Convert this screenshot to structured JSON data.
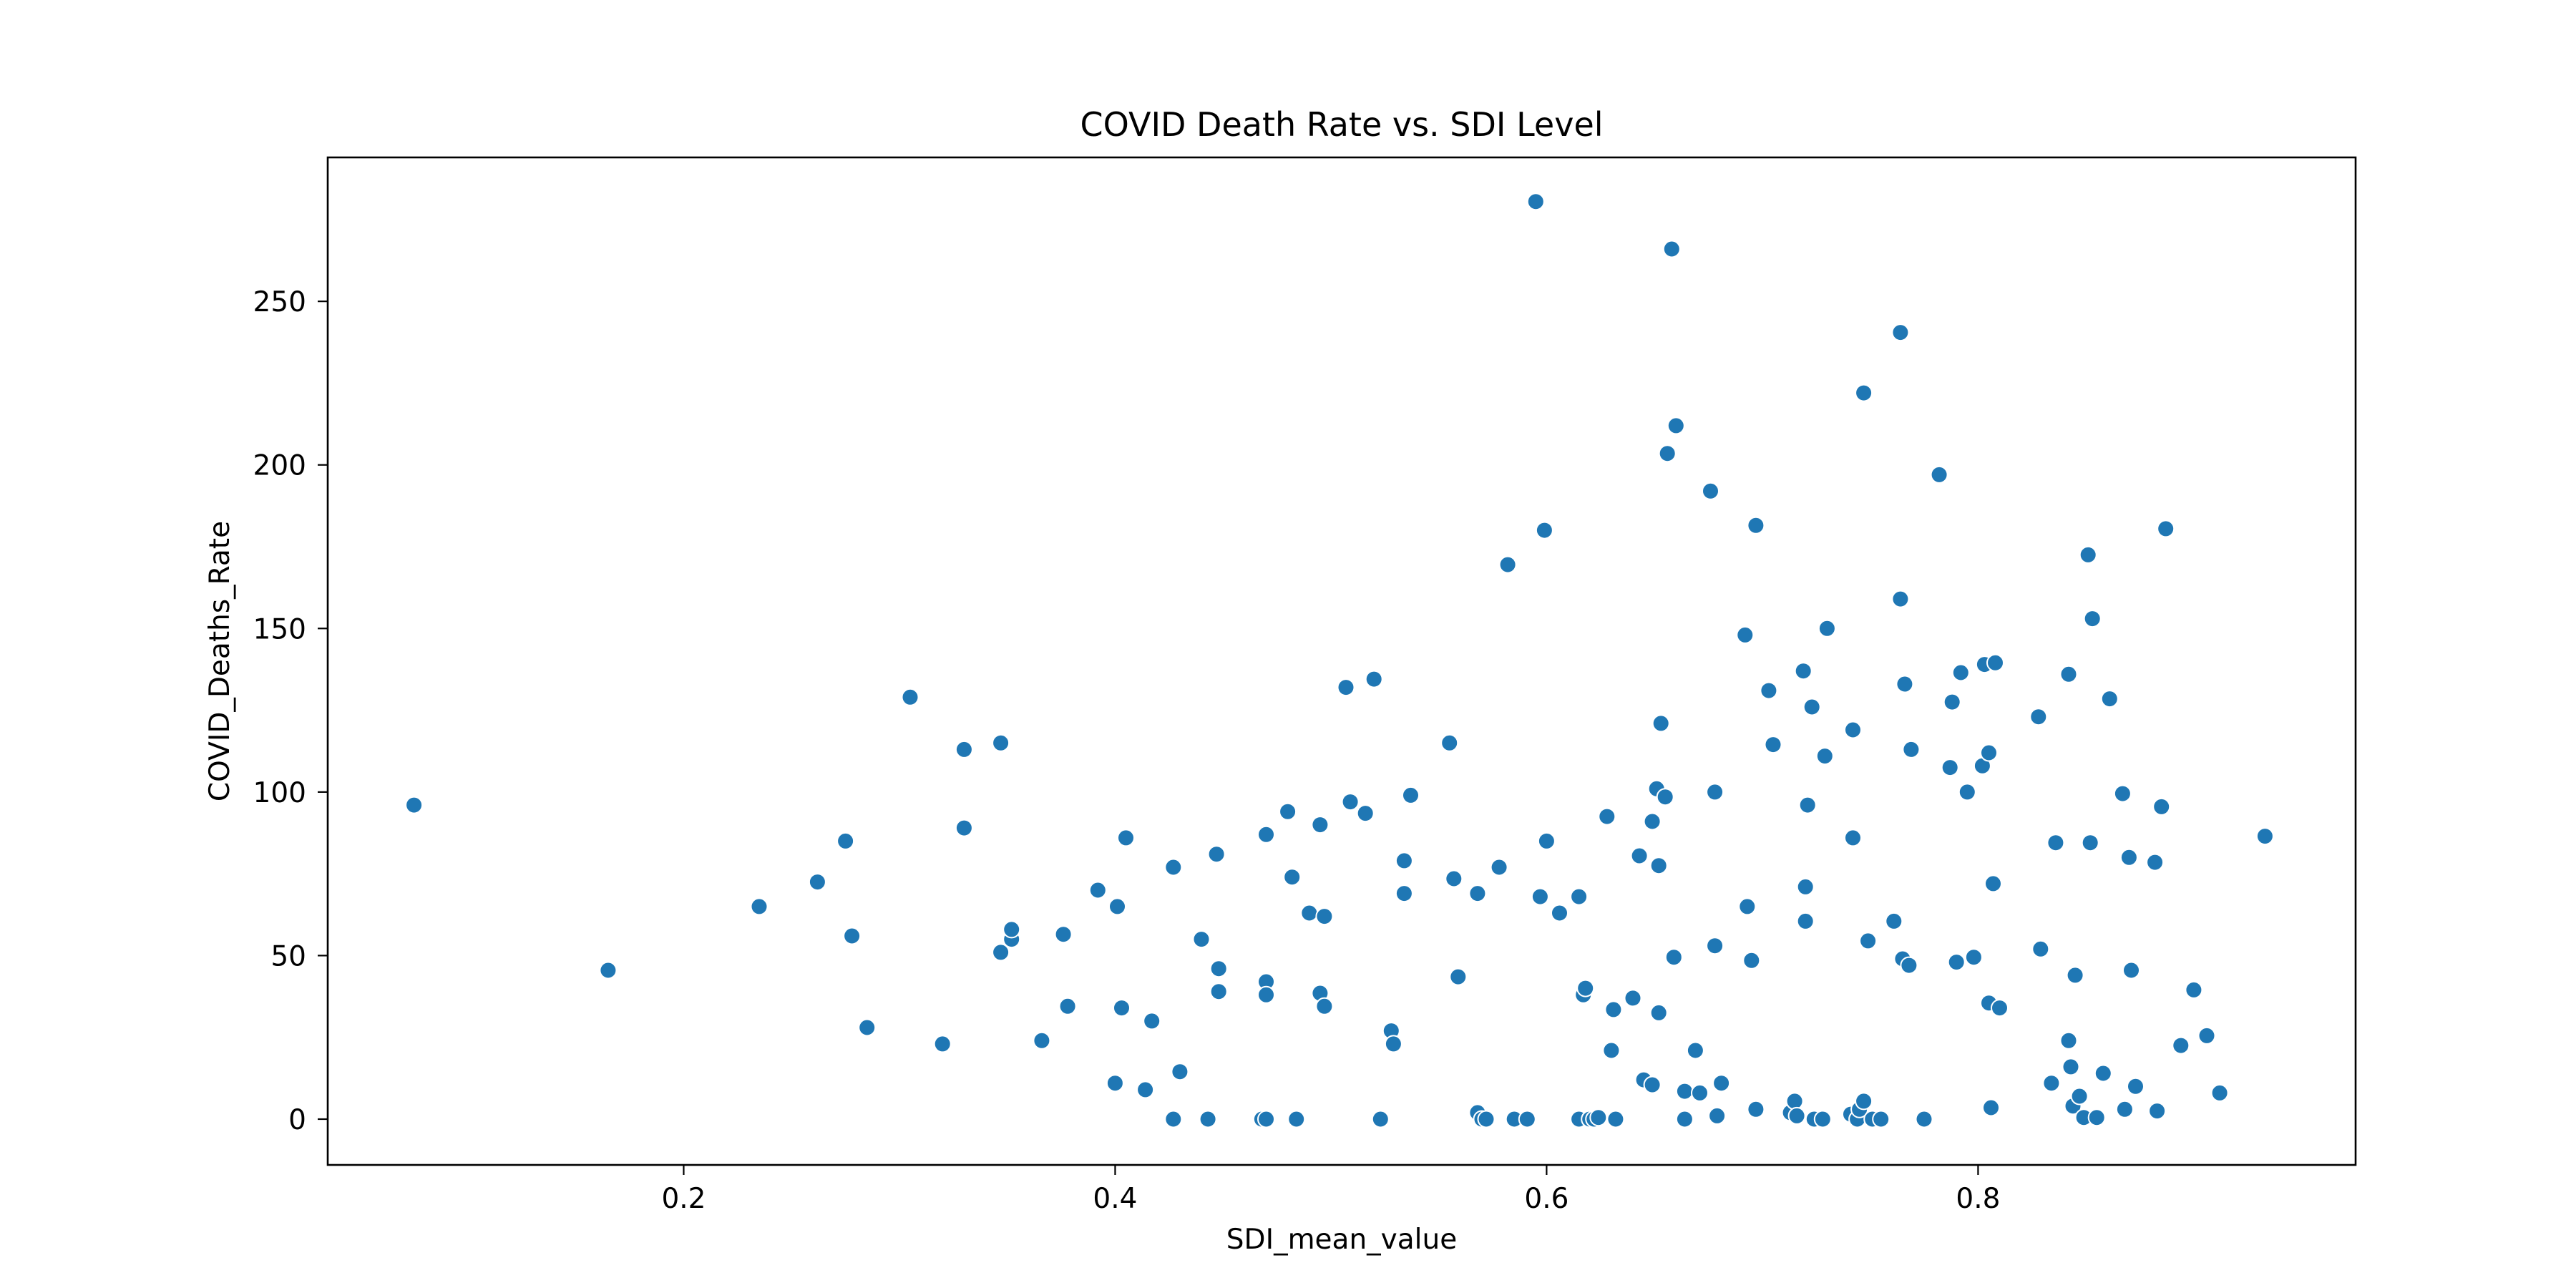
{
  "chart_data": {
    "type": "scatter",
    "title": "COVID Death Rate vs. SDI Level",
    "xlabel": "SDI_mean_value",
    "ylabel": "COVID_Deaths_Rate",
    "xlim": [
      0.035,
      0.975
    ],
    "ylim": [
      -14,
      294
    ],
    "xticks": [
      0.2,
      0.4,
      0.6,
      0.8
    ],
    "xtick_labels": [
      "0.2",
      "0.4",
      "0.6",
      "0.8"
    ],
    "yticks": [
      0,
      50,
      100,
      150,
      200,
      250
    ],
    "ytick_labels": [
      "0",
      "50",
      "100",
      "150",
      "200",
      "250"
    ],
    "grid": false,
    "legend": "none",
    "marker_color": "#1f77b4",
    "series": [
      {
        "points": [
          [
            0.075,
            96
          ],
          [
            0.165,
            45.5
          ],
          [
            0.235,
            65
          ],
          [
            0.262,
            72.5
          ],
          [
            0.275,
            85
          ],
          [
            0.278,
            56
          ],
          [
            0.285,
            28
          ],
          [
            0.305,
            129
          ],
          [
            0.32,
            23
          ],
          [
            0.33,
            113
          ],
          [
            0.33,
            89
          ],
          [
            0.347,
            115
          ],
          [
            0.347,
            51
          ],
          [
            0.352,
            55
          ],
          [
            0.352,
            58
          ],
          [
            0.366,
            24
          ],
          [
            0.376,
            56.5
          ],
          [
            0.378,
            34.5
          ],
          [
            0.392,
            70
          ],
          [
            0.4,
            11
          ],
          [
            0.401,
            65
          ],
          [
            0.403,
            34
          ],
          [
            0.405,
            86
          ],
          [
            0.414,
            9
          ],
          [
            0.417,
            30
          ],
          [
            0.427,
            77
          ],
          [
            0.427,
            0
          ],
          [
            0.43,
            14.5
          ],
          [
            0.44,
            55
          ],
          [
            0.443,
            0
          ],
          [
            0.447,
            81
          ],
          [
            0.448,
            46
          ],
          [
            0.448,
            39
          ],
          [
            0.468,
            0
          ],
          [
            0.47,
            0
          ],
          [
            0.47,
            87
          ],
          [
            0.47,
            42
          ],
          [
            0.47,
            38
          ],
          [
            0.48,
            94
          ],
          [
            0.482,
            74
          ],
          [
            0.484,
            0
          ],
          [
            0.49,
            63
          ],
          [
            0.495,
            90
          ],
          [
            0.495,
            38.5
          ],
          [
            0.497,
            62
          ],
          [
            0.497,
            34.5
          ],
          [
            0.507,
            132
          ],
          [
            0.509,
            97
          ],
          [
            0.516,
            93.5
          ],
          [
            0.52,
            134.5
          ],
          [
            0.523,
            0
          ],
          [
            0.528,
            27
          ],
          [
            0.529,
            23
          ],
          [
            0.534,
            79
          ],
          [
            0.534,
            69
          ],
          [
            0.537,
            99
          ],
          [
            0.555,
            115
          ],
          [
            0.557,
            73.5
          ],
          [
            0.559,
            43.5
          ],
          [
            0.568,
            69
          ],
          [
            0.568,
            2
          ],
          [
            0.57,
            0
          ],
          [
            0.572,
            0
          ],
          [
            0.578,
            77
          ],
          [
            0.582,
            169.5
          ],
          [
            0.585,
            0
          ],
          [
            0.591,
            0
          ],
          [
            0.595,
            280.5
          ],
          [
            0.597,
            68
          ],
          [
            0.599,
            180
          ],
          [
            0.6,
            85
          ],
          [
            0.606,
            63
          ],
          [
            0.615,
            68
          ],
          [
            0.615,
            0
          ],
          [
            0.617,
            38
          ],
          [
            0.618,
            40
          ],
          [
            0.62,
            0
          ],
          [
            0.622,
            0
          ],
          [
            0.624,
            0.5
          ],
          [
            0.628,
            92.5
          ],
          [
            0.63,
            21
          ],
          [
            0.631,
            33.5
          ],
          [
            0.632,
            0
          ],
          [
            0.64,
            37
          ],
          [
            0.643,
            80.5
          ],
          [
            0.645,
            12
          ],
          [
            0.649,
            10.5
          ],
          [
            0.649,
            91
          ],
          [
            0.651,
            101
          ],
          [
            0.652,
            77.5
          ],
          [
            0.652,
            32.5
          ],
          [
            0.653,
            121
          ],
          [
            0.655,
            98.5
          ],
          [
            0.656,
            203.5
          ],
          [
            0.658,
            266
          ],
          [
            0.659,
            49.5
          ],
          [
            0.66,
            212
          ],
          [
            0.664,
            0
          ],
          [
            0.664,
            8.5
          ],
          [
            0.669,
            21
          ],
          [
            0.671,
            8
          ],
          [
            0.676,
            192
          ],
          [
            0.678,
            100
          ],
          [
            0.678,
            53
          ],
          [
            0.679,
            1
          ],
          [
            0.681,
            11
          ],
          [
            0.692,
            148
          ],
          [
            0.693,
            65
          ],
          [
            0.695,
            48.5
          ],
          [
            0.697,
            3
          ],
          [
            0.697,
            181.5
          ],
          [
            0.703,
            131
          ],
          [
            0.705,
            114.5
          ],
          [
            0.713,
            2
          ],
          [
            0.715,
            5.5
          ],
          [
            0.716,
            1
          ],
          [
            0.719,
            137
          ],
          [
            0.72,
            60.5
          ],
          [
            0.72,
            71
          ],
          [
            0.721,
            96
          ],
          [
            0.723,
            126
          ],
          [
            0.724,
            0
          ],
          [
            0.728,
            0
          ],
          [
            0.729,
            111
          ],
          [
            0.73,
            150
          ],
          [
            0.741,
            1.5
          ],
          [
            0.742,
            119
          ],
          [
            0.742,
            86
          ],
          [
            0.744,
            0
          ],
          [
            0.745,
            3
          ],
          [
            0.747,
            5.5
          ],
          [
            0.747,
            222
          ],
          [
            0.749,
            54.5
          ],
          [
            0.751,
            0
          ],
          [
            0.755,
            0
          ],
          [
            0.761,
            60.5
          ],
          [
            0.764,
            159
          ],
          [
            0.764,
            240.5
          ],
          [
            0.765,
            49
          ],
          [
            0.766,
            133
          ],
          [
            0.768,
            47
          ],
          [
            0.769,
            113
          ],
          [
            0.775,
            0
          ],
          [
            0.782,
            197
          ],
          [
            0.787,
            107.5
          ],
          [
            0.788,
            127.5
          ],
          [
            0.79,
            48
          ],
          [
            0.792,
            136.5
          ],
          [
            0.795,
            100
          ],
          [
            0.798,
            49.5
          ],
          [
            0.802,
            108
          ],
          [
            0.803,
            139
          ],
          [
            0.805,
            112
          ],
          [
            0.805,
            35.5
          ],
          [
            0.806,
            3.5
          ],
          [
            0.807,
            72
          ],
          [
            0.808,
            139.5
          ],
          [
            0.81,
            34
          ],
          [
            0.828,
            123
          ],
          [
            0.829,
            52
          ],
          [
            0.834,
            11
          ],
          [
            0.836,
            84.5
          ],
          [
            0.842,
            136
          ],
          [
            0.842,
            24
          ],
          [
            0.843,
            16
          ],
          [
            0.844,
            4
          ],
          [
            0.845,
            44
          ],
          [
            0.847,
            7
          ],
          [
            0.849,
            0.5
          ],
          [
            0.851,
            172.5
          ],
          [
            0.852,
            84.5
          ],
          [
            0.853,
            153
          ],
          [
            0.855,
            0.5
          ],
          [
            0.858,
            14
          ],
          [
            0.861,
            128.5
          ],
          [
            0.867,
            99.5
          ],
          [
            0.868,
            3
          ],
          [
            0.87,
            80
          ],
          [
            0.871,
            45.5
          ],
          [
            0.873,
            10
          ],
          [
            0.882,
            78.5
          ],
          [
            0.883,
            2.5
          ],
          [
            0.885,
            95.5
          ],
          [
            0.887,
            180.5
          ],
          [
            0.894,
            22.5
          ],
          [
            0.9,
            39.5
          ],
          [
            0.906,
            25.5
          ],
          [
            0.912,
            8
          ],
          [
            0.933,
            86.5
          ]
        ]
      }
    ]
  }
}
